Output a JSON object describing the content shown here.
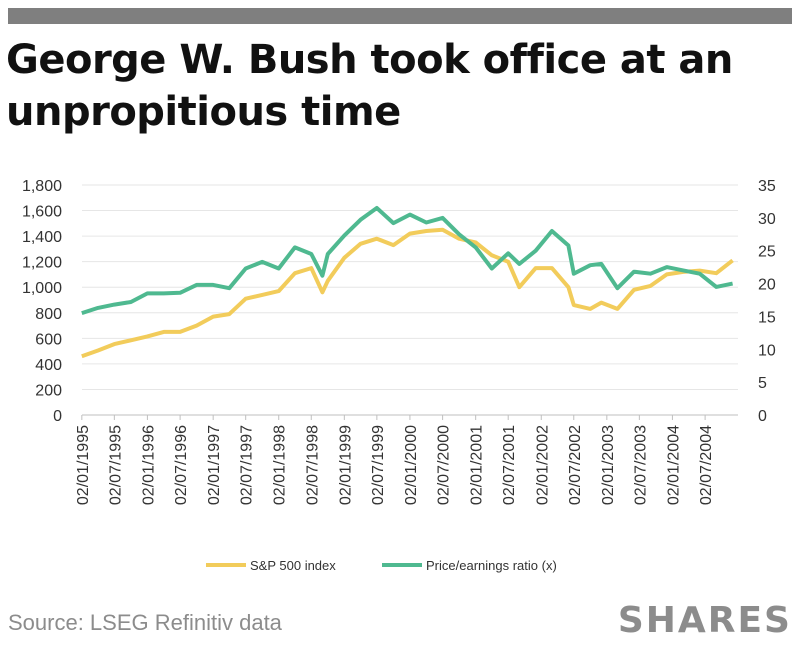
{
  "title": "George W. Bush took office at an unpropitious time",
  "source": "Source: LSEG Refinitiv data",
  "brand": "SHARES",
  "colors": {
    "sp500": "#f2cc5b",
    "pe": "#4fb990",
    "axis": "#bfbfbf",
    "text": "#333333"
  },
  "chart_data": {
    "type": "line",
    "x_tick_labels": [
      "02/01/1995",
      "02/07/1995",
      "02/01/1996",
      "02/07/1996",
      "02/01/1997",
      "02/07/1997",
      "02/01/1998",
      "02/07/1998",
      "02/01/1999",
      "02/07/1999",
      "02/01/2000",
      "02/07/2000",
      "02/01/2001",
      "02/07/2001",
      "02/01/2002",
      "02/07/2002",
      "02/01/2003",
      "02/07/2003",
      "02/01/2004",
      "02/07/2004"
    ],
    "x_range": [
      "1995-01-02",
      "2004-12-31"
    ],
    "y_left": {
      "ticks": [
        "0",
        "200",
        "400",
        "600",
        "800",
        "1,000",
        "1,200",
        "1,400",
        "1,600",
        "1,800"
      ],
      "min": 0,
      "max": 1800
    },
    "y_right": {
      "ticks": [
        "0",
        "5",
        "10",
        "15",
        "20",
        "25",
        "30",
        "35"
      ],
      "min": 0,
      "max": 35
    },
    "grid": "horizontal",
    "legend_position": "bottom",
    "series": [
      {
        "name": "S&P 500 index",
        "axis": "left",
        "points": [
          [
            "1995-01",
            460
          ],
          [
            "1995-04",
            505
          ],
          [
            "1995-07",
            555
          ],
          [
            "1995-10",
            585
          ],
          [
            "1996-01",
            615
          ],
          [
            "1996-04",
            650
          ],
          [
            "1996-07",
            650
          ],
          [
            "1996-10",
            700
          ],
          [
            "1997-01",
            770
          ],
          [
            "1997-04",
            790
          ],
          [
            "1997-07",
            910
          ],
          [
            "1997-10",
            940
          ],
          [
            "1998-01",
            970
          ],
          [
            "1998-04",
            1110
          ],
          [
            "1998-07",
            1150
          ],
          [
            "1998-09",
            960
          ],
          [
            "1998-10",
            1050
          ],
          [
            "1999-01",
            1230
          ],
          [
            "1999-04",
            1340
          ],
          [
            "1999-07",
            1380
          ],
          [
            "1999-10",
            1330
          ],
          [
            "2000-01",
            1420
          ],
          [
            "2000-04",
            1440
          ],
          [
            "2000-07",
            1450
          ],
          [
            "2000-10",
            1380
          ],
          [
            "2001-01",
            1350
          ],
          [
            "2001-04",
            1250
          ],
          [
            "2001-07",
            1200
          ],
          [
            "2001-09",
            1000
          ],
          [
            "2001-12",
            1150
          ],
          [
            "2002-03",
            1150
          ],
          [
            "2002-06",
            1000
          ],
          [
            "2002-07",
            860
          ],
          [
            "2002-10",
            830
          ],
          [
            "2002-12",
            880
          ],
          [
            "2003-03",
            830
          ],
          [
            "2003-06",
            980
          ],
          [
            "2003-09",
            1010
          ],
          [
            "2003-12",
            1100
          ],
          [
            "2004-03",
            1120
          ],
          [
            "2004-06",
            1130
          ],
          [
            "2004-09",
            1110
          ],
          [
            "2004-12",
            1210
          ]
        ]
      },
      {
        "name": "Price/earnings ratio (x)",
        "axis": "right",
        "points": [
          [
            "1995-01",
            15.5
          ],
          [
            "1995-04",
            16.3
          ],
          [
            "1995-07",
            16.8
          ],
          [
            "1995-10",
            17.2
          ],
          [
            "1996-01",
            18.5
          ],
          [
            "1996-04",
            18.5
          ],
          [
            "1996-07",
            18.6
          ],
          [
            "1996-10",
            19.8
          ],
          [
            "1997-01",
            19.8
          ],
          [
            "1997-04",
            19.3
          ],
          [
            "1997-07",
            22.3
          ],
          [
            "1997-10",
            23.3
          ],
          [
            "1998-01",
            22.3
          ],
          [
            "1998-04",
            25.5
          ],
          [
            "1998-07",
            24.5
          ],
          [
            "1998-09",
            21.2
          ],
          [
            "1998-10",
            24.5
          ],
          [
            "1999-01",
            27.3
          ],
          [
            "1999-04",
            29.7
          ],
          [
            "1999-07",
            31.5
          ],
          [
            "1999-10",
            29.2
          ],
          [
            "2000-01",
            30.5
          ],
          [
            "2000-04",
            29.3
          ],
          [
            "2000-07",
            30.0
          ],
          [
            "2000-10",
            27.5
          ],
          [
            "2001-01",
            25.5
          ],
          [
            "2001-04",
            22.3
          ],
          [
            "2001-07",
            24.6
          ],
          [
            "2001-09",
            23.0
          ],
          [
            "2001-12",
            25.0
          ],
          [
            "2002-03",
            28.0
          ],
          [
            "2002-06",
            25.8
          ],
          [
            "2002-07",
            21.5
          ],
          [
            "2002-10",
            22.8
          ],
          [
            "2002-12",
            23.0
          ],
          [
            "2003-03",
            19.3
          ],
          [
            "2003-06",
            21.8
          ],
          [
            "2003-09",
            21.5
          ],
          [
            "2003-12",
            22.5
          ],
          [
            "2004-03",
            22.0
          ],
          [
            "2004-06",
            21.5
          ],
          [
            "2004-09",
            19.5
          ],
          [
            "2004-12",
            20.0
          ]
        ]
      }
    ]
  }
}
